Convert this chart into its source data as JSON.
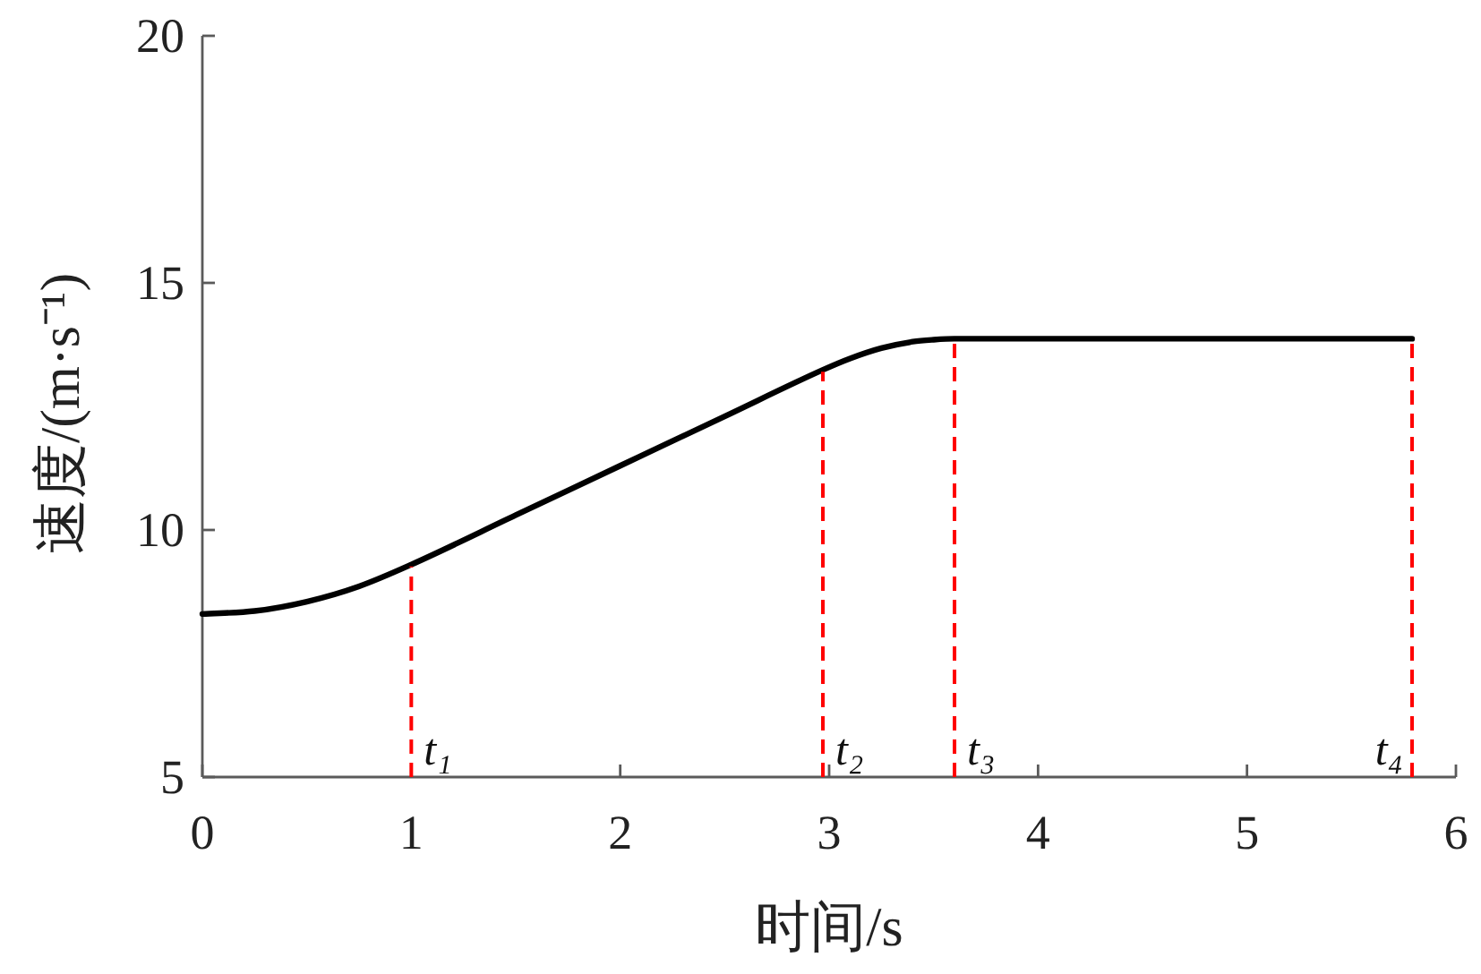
{
  "chart_data": {
    "type": "line",
    "xlabel": "时间/s",
    "ylabel": "速度/(m·s⁻¹)",
    "x": [
      0,
      0.25,
      0.5,
      0.75,
      1,
      1.5,
      2,
      2.5,
      2.97,
      3.1,
      3.25,
      3.4,
      3.5,
      3.6,
      5.79
    ],
    "series": [
      {
        "color": "#000000",
        "values": [
          8.3,
          8.36,
          8.55,
          8.86,
          9.3,
          10.3,
          11.3,
          12.3,
          13.24,
          13.47,
          13.68,
          13.81,
          13.85,
          13.87,
          13.87
        ]
      }
    ],
    "xlim": [
      0,
      6
    ],
    "ylim": [
      5,
      20
    ],
    "xticks": [
      0,
      1,
      2,
      3,
      4,
      5,
      6
    ],
    "yticks": [
      5,
      10,
      15,
      20
    ],
    "line_style": "solid",
    "ref_lines": [
      {
        "axis": "x",
        "value": 1,
        "label": "t₁",
        "color": "#ff0000",
        "line_style": "dashed"
      },
      {
        "axis": "x",
        "value": 2.97,
        "label": "t₂",
        "color": "#ff0000",
        "line_style": "dashed"
      },
      {
        "axis": "x",
        "value": 3.6,
        "label": "t₃",
        "color": "#ff0000",
        "line_style": "dashed"
      },
      {
        "axis": "x",
        "value": 5.79,
        "label": "t₄",
        "color": "#ff0000",
        "line_style": "dashed"
      }
    ]
  }
}
